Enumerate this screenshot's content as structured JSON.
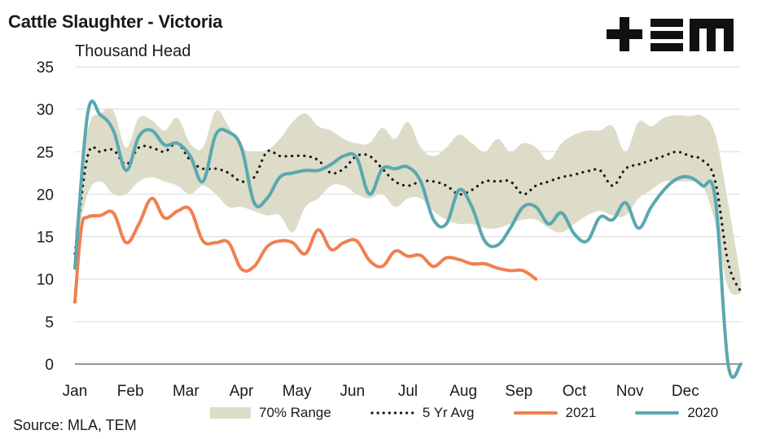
{
  "chart_data": {
    "type": "line",
    "title": "Cattle Slaughter - Victoria",
    "ylabel": "Thousand Head",
    "ylim": [
      0,
      35
    ],
    "yticks": [
      0,
      5,
      10,
      15,
      20,
      25,
      30,
      35
    ],
    "xticks": [
      "Jan",
      "Feb",
      "Mar",
      "Apr",
      "May",
      "Jun",
      "Jul",
      "Aug",
      "Sep",
      "Oct",
      "Nov",
      "Dec"
    ],
    "x_unit": "week",
    "grid": "horizontal",
    "legend_position": "bottom",
    "band": {
      "name": "70% Range",
      "color": "#dcdcc8",
      "x": [
        0,
        1,
        2,
        3,
        4,
        5,
        6,
        7,
        8,
        9,
        10,
        11,
        12,
        13,
        14,
        15,
        16,
        17,
        18,
        19,
        20,
        21,
        22,
        23,
        24,
        25,
        26,
        27,
        28,
        29,
        30,
        31,
        32,
        33,
        34,
        35,
        36,
        37,
        38,
        39,
        40,
        41,
        42,
        43,
        44,
        45,
        46,
        47,
        48,
        49,
        50,
        51,
        52
      ],
      "upper": [
        15.5,
        27.5,
        29.5,
        29.8,
        25.5,
        29.0,
        28.7,
        27.5,
        29.0,
        26.0,
        25.5,
        29.8,
        28.0,
        25.5,
        25.0,
        25.2,
        26.5,
        28.5,
        29.5,
        28.0,
        27.5,
        26.5,
        26.0,
        26.0,
        27.8,
        26.5,
        28.5,
        25.5,
        24.5,
        25.5,
        27.0,
        26.0,
        25.0,
        26.5,
        25.0,
        26.0,
        25.5,
        24.0,
        26.0,
        27.0,
        27.5,
        27.5,
        28.0,
        25.0,
        28.5,
        28.0,
        29.0,
        29.3,
        29.2,
        29.2,
        27.0,
        19.0,
        10.0
      ],
      "lower": [
        13.5,
        20.0,
        21.5,
        20.0,
        20.0,
        21.5,
        22.0,
        21.5,
        21.0,
        20.0,
        21.0,
        20.0,
        18.5,
        18.5,
        18.0,
        17.5,
        17.5,
        15.5,
        18.5,
        19.5,
        21.0,
        21.0,
        20.0,
        19.5,
        20.0,
        18.5,
        19.5,
        19.5,
        18.0,
        17.0,
        16.5,
        16.5,
        16.0,
        16.0,
        16.5,
        17.0,
        17.0,
        16.0,
        15.5,
        16.5,
        17.5,
        18.0,
        17.5,
        17.5,
        19.5,
        20.5,
        21.5,
        21.5,
        21.5,
        21.0,
        16.5,
        9.0,
        8.3
      ]
    },
    "series": [
      {
        "name": "5 Yr Avg",
        "color": "#1a1a1a",
        "style": "dotted",
        "x": [
          0,
          1,
          2,
          3,
          4,
          5,
          6,
          7,
          8,
          9,
          10,
          11,
          12,
          13,
          14,
          15,
          16,
          17,
          18,
          19,
          20,
          21,
          22,
          23,
          24,
          25,
          26,
          27,
          28,
          29,
          30,
          31,
          32,
          33,
          34,
          35,
          36,
          37,
          38,
          39,
          40,
          41,
          42,
          43,
          44,
          45,
          46,
          47,
          48,
          49,
          50,
          51,
          52
        ],
        "values": [
          13.0,
          24.5,
          25.0,
          25.2,
          23.5,
          25.5,
          25.5,
          25.0,
          26.0,
          24.0,
          23.0,
          23.0,
          22.5,
          21.5,
          22.0,
          25.0,
          24.5,
          24.5,
          24.5,
          24.0,
          22.5,
          23.0,
          24.5,
          24.5,
          23.0,
          21.5,
          21.0,
          21.5,
          21.5,
          21.0,
          20.0,
          20.5,
          21.5,
          21.5,
          21.5,
          20.0,
          21.0,
          21.5,
          22.0,
          22.3,
          22.7,
          22.8,
          21.0,
          23.0,
          23.5,
          24.0,
          24.5,
          25.0,
          24.5,
          24.0,
          21.5,
          12.0,
          8.5
        ]
      },
      {
        "name": "2021",
        "color": "#f08050",
        "style": "solid",
        "x": [
          0,
          0.5,
          1,
          2,
          3,
          4,
          5,
          6,
          7,
          8,
          9,
          10,
          11,
          12,
          13,
          14,
          15,
          16,
          17,
          18,
          19,
          20,
          21,
          22,
          23,
          24,
          25,
          26,
          27,
          28,
          29,
          30,
          31,
          32,
          33,
          34,
          35,
          36
        ],
        "values": [
          7.3,
          16.0,
          17.3,
          17.5,
          17.8,
          14.3,
          16.5,
          19.5,
          17.2,
          18.0,
          18.2,
          14.5,
          14.3,
          14.3,
          11.2,
          11.5,
          13.8,
          14.5,
          14.3,
          13.0,
          15.8,
          13.5,
          14.3,
          14.5,
          12.2,
          11.5,
          13.3,
          12.7,
          12.8,
          11.5,
          12.5,
          12.3,
          11.8,
          11.8,
          11.3,
          11.0,
          11.0,
          10.0
        ]
      },
      {
        "name": "2020",
        "color": "#5aa8b0",
        "style": "solid",
        "x": [
          0,
          1,
          2,
          3,
          4,
          5,
          6,
          7,
          8,
          9,
          10,
          11,
          12,
          13,
          14,
          15,
          16,
          17,
          18,
          19,
          20,
          21,
          22,
          23,
          24,
          25,
          26,
          27,
          28,
          29,
          30,
          31,
          32,
          33,
          34,
          35,
          36,
          37,
          38,
          39,
          40,
          41,
          42,
          43,
          44,
          45,
          46,
          47,
          48,
          49,
          50,
          51,
          52
        ],
        "values": [
          11.3,
          29.5,
          29.3,
          27.5,
          22.8,
          26.8,
          27.5,
          25.8,
          26.0,
          24.5,
          21.5,
          27.0,
          27.3,
          25.5,
          19.0,
          19.5,
          22.0,
          22.5,
          22.8,
          22.8,
          23.5,
          24.5,
          24.3,
          20.0,
          23.0,
          23.0,
          23.2,
          21.5,
          17.0,
          16.5,
          20.5,
          18.5,
          14.5,
          14.0,
          16.0,
          18.5,
          18.5,
          16.5,
          17.8,
          15.3,
          14.5,
          17.3,
          17.0,
          19.0,
          16.0,
          18.5,
          20.5,
          21.8,
          22.0,
          21.0,
          19.5,
          0.0,
          0.0
        ]
      }
    ],
    "source": "Source: MLA, TEM",
    "legend_labels": {
      "range": "70% Range",
      "avg": "5 Yr Avg",
      "y2021": "2021",
      "y2020": "2020"
    }
  },
  "logo": {
    "name": "TEM logo",
    "text": "+EM"
  }
}
